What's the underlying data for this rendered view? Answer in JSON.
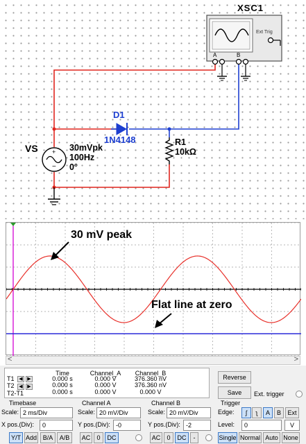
{
  "schematic": {
    "scope_name": "XSC1",
    "scope_ext_trig": "Ext Trig",
    "scope_channel_a": "A",
    "scope_channel_b": "B",
    "scope_minus": "_",
    "diode_name": "D1",
    "diode_model": "1N4148",
    "source_name": "VS",
    "source_amplitude": "30mVpk",
    "source_frequency": "100Hz",
    "source_phase": "0°",
    "resistor_name": "R1",
    "resistor_value": "10kΩ",
    "colors": {
      "channel_a_wire": "#e0251d",
      "channel_b_wire": "#1d3fd0",
      "ground_wire": "#000000"
    }
  },
  "scope_display": {
    "annotation_peak": "30 mV peak",
    "annotation_zero": "Flat line at zero",
    "colors": {
      "trace_a": "#e8302a",
      "trace_b": "#2a2ad8",
      "cursor1": "#d400d4",
      "grid": "#9a9a9a"
    },
    "trace_a": {
      "amplitude_mV": 30,
      "frequency_Hz": 100,
      "scale_mV_per_div": 20,
      "y_pos_div": 0
    },
    "trace_b": {
      "level_mV": 0,
      "scale_mV_per_div": 20,
      "y_pos_div": -2
    }
  },
  "readout": {
    "headers": {
      "time": "Time",
      "channel_a": "Channel_A",
      "channel_b": "Channel_B"
    },
    "rows": [
      {
        "label": "T1",
        "time": "0.000 s",
        "channel_a": "0.000 V",
        "channel_b": "376.360 nV"
      },
      {
        "label": "T2",
        "time": "0.000 s",
        "channel_a": "0.000 V",
        "channel_b": "376.360 nV"
      },
      {
        "label": "T2-T1",
        "time": "0.000 s",
        "channel_a": "0.000 V",
        "channel_b": "0.000 V"
      }
    ],
    "reverse_label": "Reverse",
    "save_label": "Save",
    "ext_trigger_label": "Ext. trigger"
  },
  "timebase": {
    "title": "Timebase",
    "scale_label": "Scale:",
    "scale_value": "2 ms/Div",
    "xpos_label": "X pos.(Div):",
    "xpos_value": "0",
    "modes": [
      "Y/T",
      "Add",
      "B/A",
      "A/B"
    ]
  },
  "channel_a": {
    "title": "Channel A",
    "scale_label": "Scale:",
    "scale_value": "20 mV/Div",
    "ypos_label": "Y pos.(Div):",
    "ypos_value": "-0",
    "coupling": [
      "AC",
      "0",
      "DC"
    ]
  },
  "channel_b": {
    "title": "Channel B",
    "scale_label": "Scale:",
    "scale_value": "20 mV/Div",
    "ypos_label": "Y pos.(Div):",
    "ypos_value": "-2",
    "coupling": [
      "AC",
      "0",
      "DC",
      "-"
    ]
  },
  "trigger": {
    "title": "Trigger",
    "edge_label": "Edge:",
    "edge_rising": "ʃ",
    "edge_falling": "ʅ",
    "sources": [
      "A",
      "B",
      "Ext"
    ],
    "level_label": "Level:",
    "level_value": "0",
    "level_unit": "V",
    "modes": [
      "Single",
      "Normal",
      "Auto",
      "None"
    ]
  }
}
